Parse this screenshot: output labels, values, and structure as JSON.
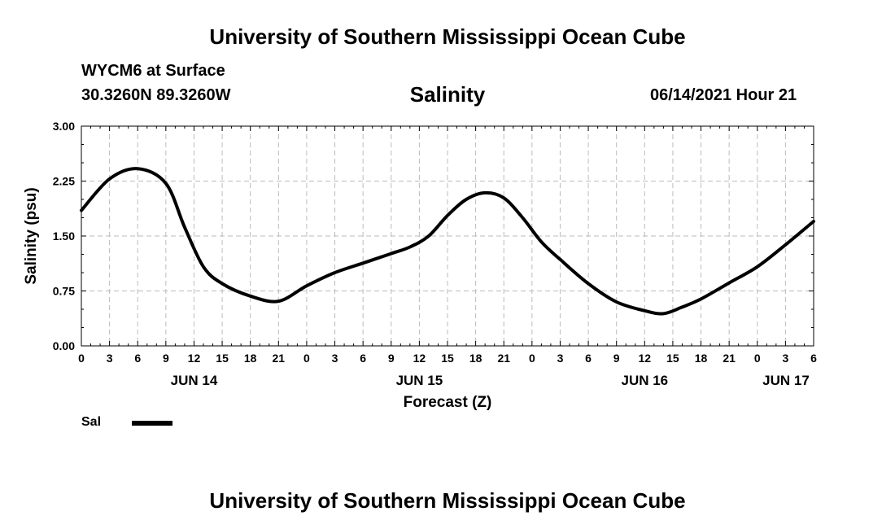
{
  "header": {
    "title": "University of Southern Mississippi Ocean Cube",
    "station": "WYCM6 at Surface",
    "coordinates": "30.3260N  89.3260W",
    "datetime": "06/14/2021 Hour 21"
  },
  "footer": {
    "title": "University of Southern Mississippi Ocean Cube"
  },
  "legend": {
    "label": "Sal",
    "color": "#000000"
  },
  "chart_data": {
    "type": "line",
    "title": "Salinity",
    "xlabel": "Forecast (Z)",
    "ylabel": "Salinity (psu)",
    "ylim": [
      0,
      3
    ],
    "xlim": [
      0,
      78
    ],
    "yticks": [
      "0.00",
      "0.75",
      "1.50",
      "2.25",
      "3.00"
    ],
    "xtick_labels": [
      "0",
      "3",
      "6",
      "9",
      "12",
      "15",
      "18",
      "21",
      "0",
      "3",
      "6",
      "9",
      "12",
      "15",
      "18",
      "21",
      "0",
      "3",
      "6",
      "9",
      "12",
      "15",
      "18",
      "21",
      "0",
      "3",
      "6"
    ],
    "date_labels": [
      {
        "label": "JUN 14",
        "hour": 12
      },
      {
        "label": "JUN 15",
        "hour": 36
      },
      {
        "label": "JUN 16",
        "hour": 60
      },
      {
        "label": "JUN 17",
        "hour": 78
      }
    ],
    "grid": true,
    "legend_position": "bottom-left",
    "series": [
      {
        "name": "Sal",
        "x": [
          0,
          3,
          6,
          9,
          11,
          13,
          15,
          18,
          21,
          24,
          27,
          30,
          33,
          35,
          37,
          39,
          41,
          43,
          45,
          47,
          49,
          51,
          54,
          57,
          60,
          62,
          64,
          66,
          69,
          72,
          75,
          78
        ],
        "y": [
          1.85,
          2.28,
          2.42,
          2.22,
          1.62,
          1.08,
          0.85,
          0.68,
          0.61,
          0.82,
          1.0,
          1.13,
          1.26,
          1.35,
          1.5,
          1.78,
          2.0,
          2.09,
          2.02,
          1.75,
          1.42,
          1.18,
          0.85,
          0.6,
          0.48,
          0.44,
          0.53,
          0.64,
          0.86,
          1.08,
          1.38,
          1.7
        ]
      }
    ]
  }
}
